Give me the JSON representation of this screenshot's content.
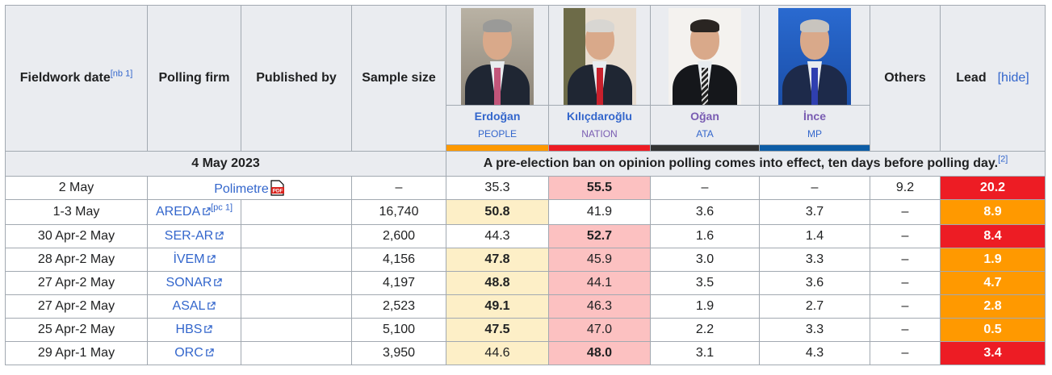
{
  "header": {
    "fieldwork_date": "Fieldwork date",
    "fieldwork_note": "[nb 1]",
    "polling_firm": "Polling firm",
    "published_by": "Published by",
    "sample_size": "Sample size",
    "others": "Others",
    "lead": "Lead",
    "hide": "[hide]",
    "candidates": [
      {
        "name": "Erdoğan",
        "party": "PEOPLE",
        "color": "#ff9900"
      },
      {
        "name": "Kılıçdaroğlu",
        "party": "NATION",
        "color": "#ed1c24"
      },
      {
        "name": "Oğan",
        "party": "ATA",
        "color": "#333333"
      },
      {
        "name": "İnce",
        "party": "MP",
        "color": "#0d5da6"
      }
    ]
  },
  "notice": {
    "date": "4 May 2023",
    "text": "A pre-election ban on opinion polling comes into effect, ten days before polling day.",
    "ref": "[2]"
  },
  "rows": [
    {
      "date": "2 May",
      "firm": "Polimetre",
      "icon": "pdf-icon",
      "sample": "–",
      "erdogan": "35.3",
      "kilicdaroglu": "55.5",
      "ogan": "–",
      "ince": "–",
      "others": "9.2",
      "lead": "20.2",
      "lead_color": "#ed1c24"
    },
    {
      "date": "1-3 May",
      "firm": "AREDA",
      "ref": "[pc 1]",
      "sample": "16,740",
      "erdogan": "50.8",
      "kilicdaroglu": "41.9",
      "ogan": "3.6",
      "ince": "3.7",
      "others": "–",
      "lead": "8.9",
      "lead_color": "#ff9900"
    },
    {
      "date": "30 Apr-2 May",
      "firm": "SER-AR",
      "sample": "2,600",
      "erdogan": "44.3",
      "kilicdaroglu": "52.7",
      "ogan": "1.6",
      "ince": "1.4",
      "others": "–",
      "lead": "8.4",
      "lead_color": "#ed1c24"
    },
    {
      "date": "28 Apr-2 May",
      "firm": "İVEM",
      "sample": "4,156",
      "erdogan": "47.8",
      "kilicdaroglu": "45.9",
      "ogan": "3.0",
      "ince": "3.3",
      "others": "–",
      "lead": "1.9",
      "lead_color": "#ff9900"
    },
    {
      "date": "27 Apr-2 May",
      "firm": "SONAR",
      "sample": "4,197",
      "erdogan": "48.8",
      "kilicdaroglu": "44.1",
      "ogan": "3.5",
      "ince": "3.6",
      "others": "–",
      "lead": "4.7",
      "lead_color": "#ff9900"
    },
    {
      "date": "27 Apr-2 May",
      "firm": "ASAL",
      "sample": "2,523",
      "erdogan": "49.1",
      "kilicdaroglu": "46.3",
      "ogan": "1.9",
      "ince": "2.7",
      "others": "–",
      "lead": "2.8",
      "lead_color": "#ff9900"
    },
    {
      "date": "25 Apr-2 May",
      "firm": "HBS",
      "sample": "5,100",
      "erdogan": "47.5",
      "kilicdaroglu": "47.0",
      "ogan": "2.2",
      "ince": "3.3",
      "others": "–",
      "lead": "0.5",
      "lead_color": "#ff9900"
    },
    {
      "date": "29 Apr-1 May",
      "firm": "ORC",
      "sample": "3,950",
      "erdogan": "44.6",
      "kilicdaroglu": "48.0",
      "ogan": "3.1",
      "ince": "4.3",
      "others": "–",
      "lead": "3.4",
      "lead_color": "#ed1c24"
    }
  ]
}
